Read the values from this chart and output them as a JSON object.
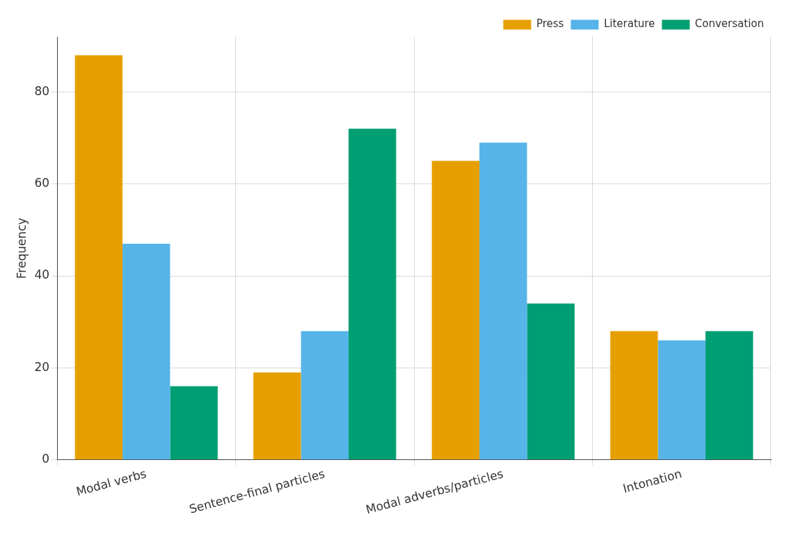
{
  "chart_data": {
    "type": "bar",
    "ylabel": "Frequency",
    "categories": [
      "Modal verbs",
      "Sentence-final particles",
      "Modal adverbs/particles",
      "Intonation"
    ],
    "series": [
      {
        "name": "Press",
        "color": "#e69f00",
        "values": [
          88,
          19,
          65,
          28
        ]
      },
      {
        "name": "Literature",
        "color": "#56b4e9",
        "values": [
          47,
          28,
          69,
          26
        ]
      },
      {
        "name": "Conversation",
        "color": "#009e73",
        "values": [
          16,
          72,
          34,
          28
        ]
      }
    ],
    "ylim": [
      0,
      92
    ],
    "yticks": [
      0,
      20,
      40,
      60,
      80
    ],
    "grid": true,
    "legend": "top right"
  }
}
